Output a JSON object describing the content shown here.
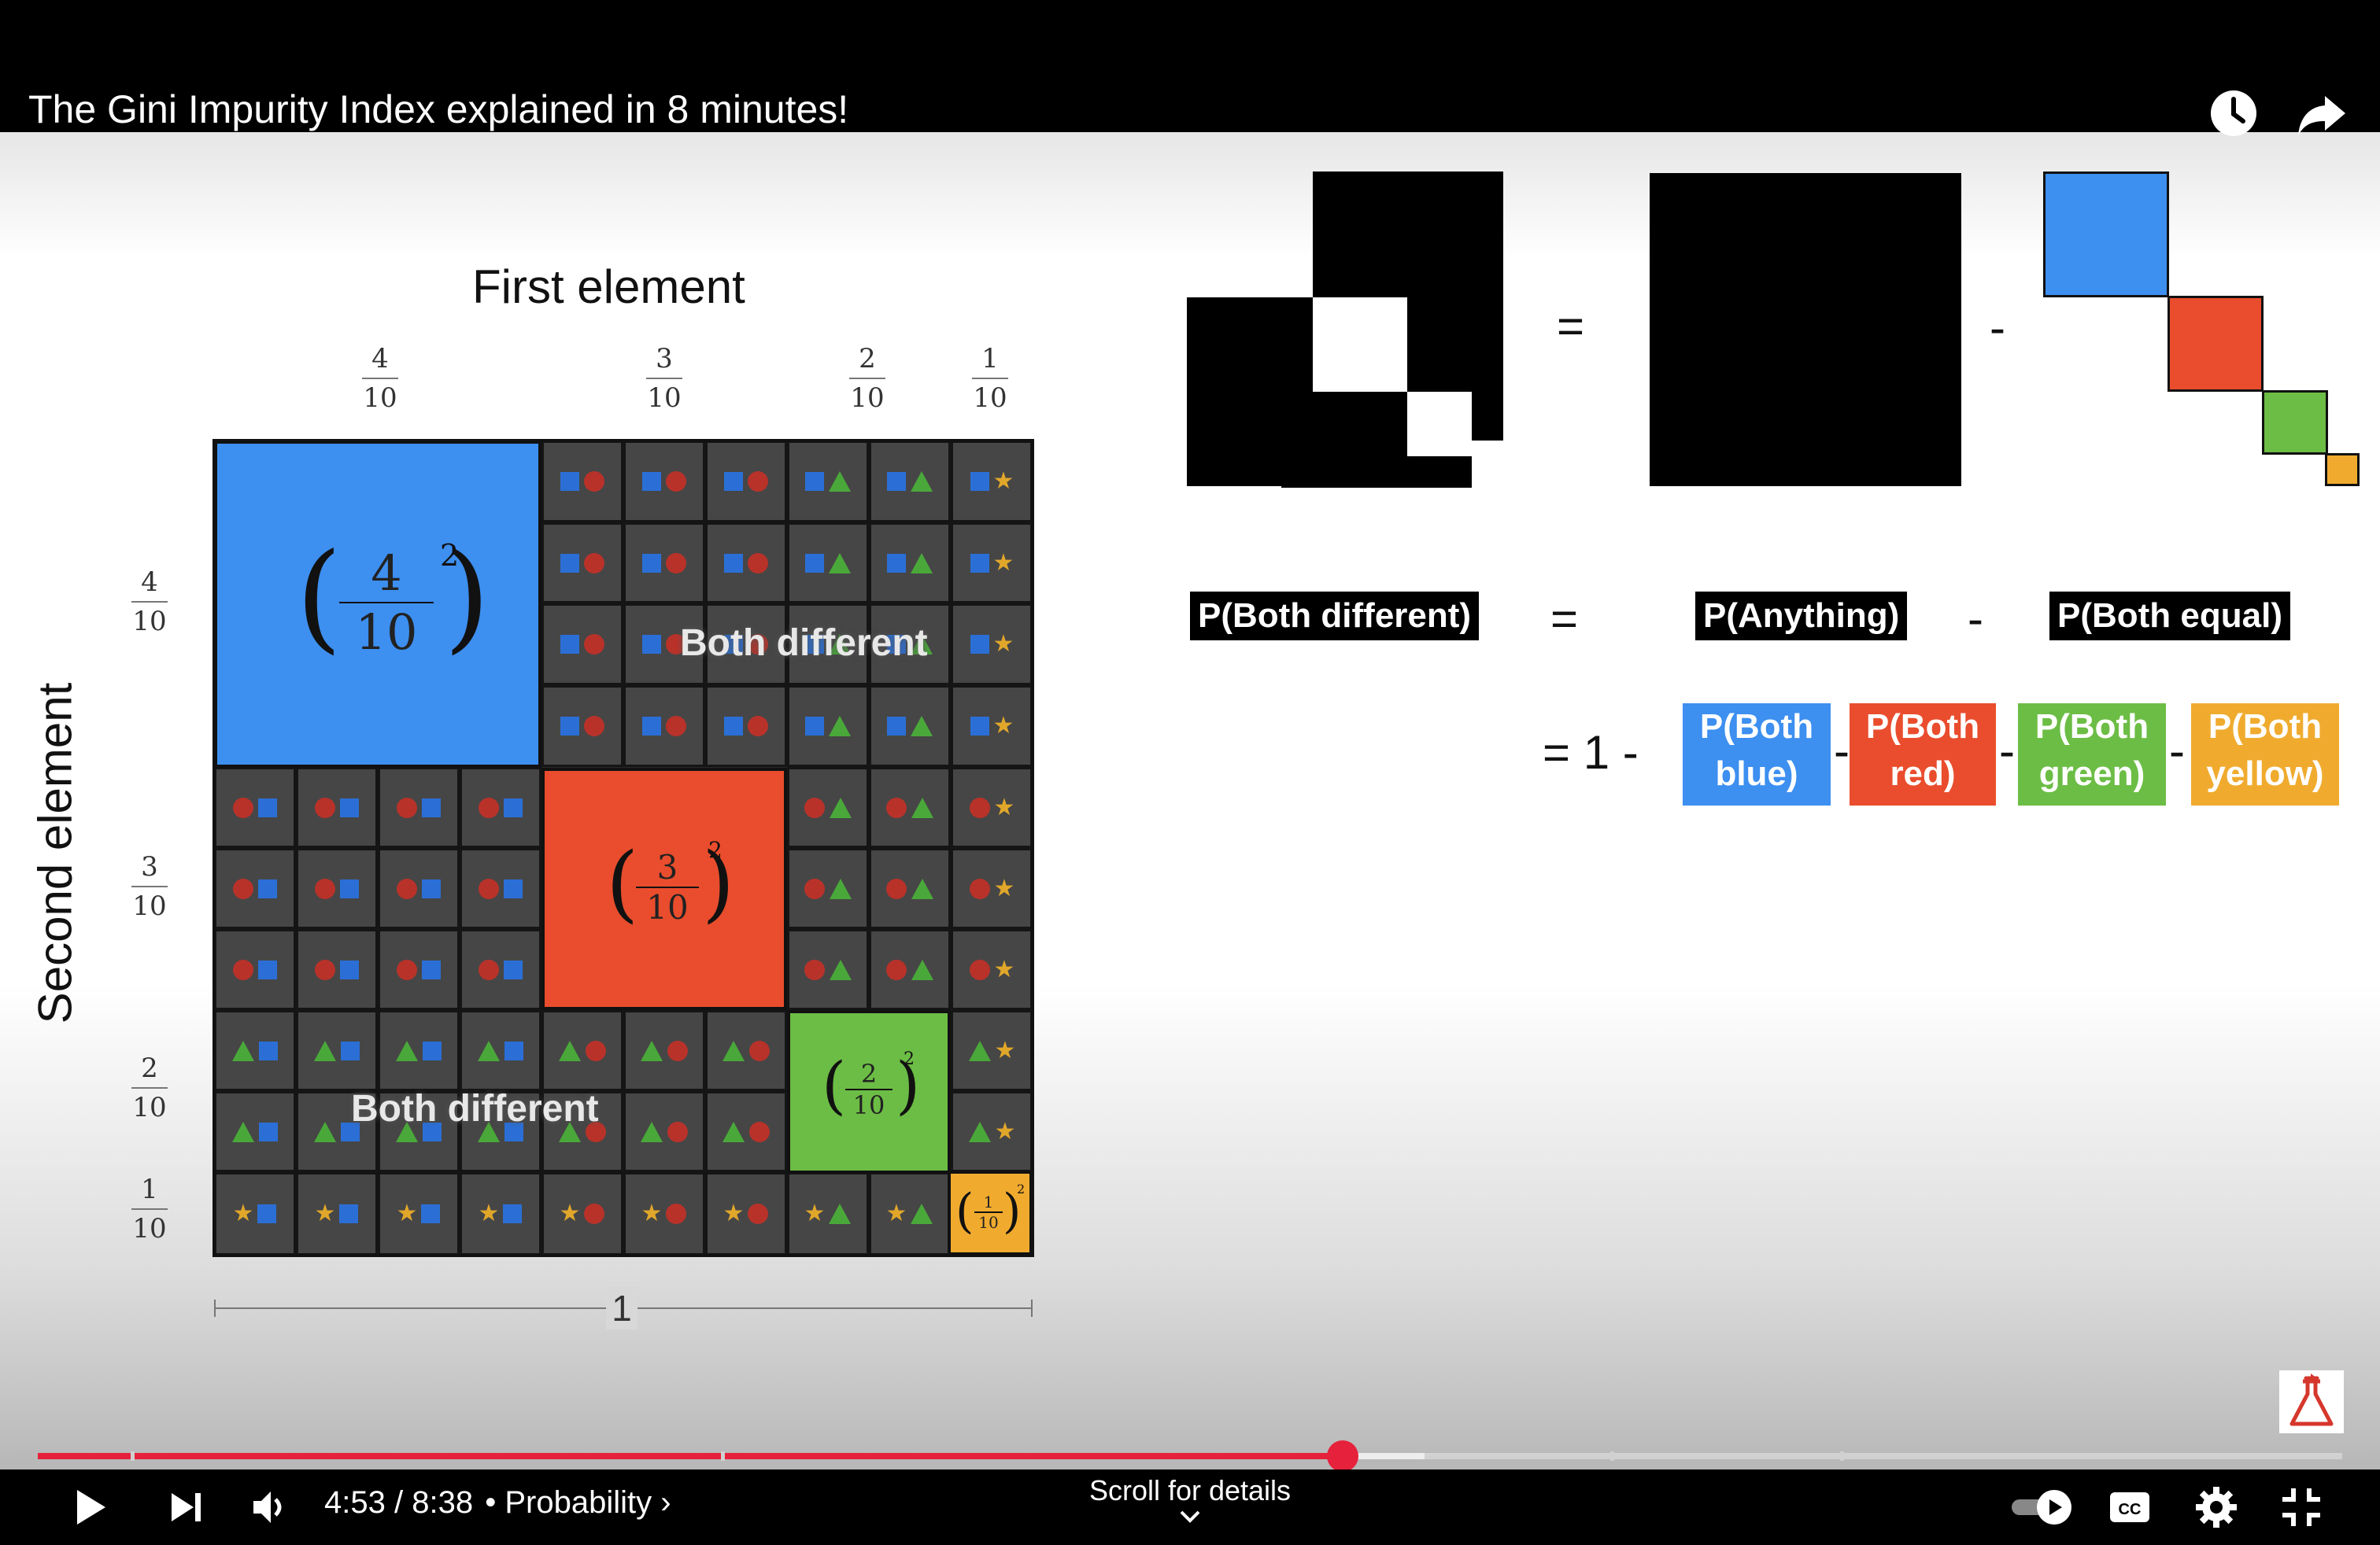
{
  "video": {
    "title": "The Gini Impurity Index explained in 8 minutes!",
    "slide": {
      "diagram": {
        "x_title": "First element",
        "y_title": "Second element",
        "column_labels": [
          {
            "num": "4",
            "den": "10"
          },
          {
            "num": "3",
            "den": "10"
          },
          {
            "num": "2",
            "den": "10"
          },
          {
            "num": "1",
            "den": "10"
          }
        ],
        "row_labels": [
          {
            "num": "4",
            "den": "10"
          },
          {
            "num": "3",
            "den": "10"
          },
          {
            "num": "2",
            "den": "10"
          },
          {
            "num": "1",
            "den": "10"
          }
        ],
        "diagonal": [
          {
            "num": "4",
            "den": "10",
            "exp": "2",
            "color": "#3d8ff0"
          },
          {
            "num": "3",
            "den": "10",
            "exp": "2",
            "color": "#e94d2d"
          },
          {
            "num": "2",
            "den": "10",
            "exp": "2",
            "color": "#6cbd45"
          },
          {
            "num": "1",
            "den": "10",
            "exp": "2",
            "color": "#f0ab2f"
          }
        ],
        "both_different_top": "Both different",
        "both_different_bottom": "Both different",
        "scale_label": "1"
      },
      "equation": {
        "equals": "=",
        "minus": "-",
        "p_both_different": "P(Both different)",
        "p_anything": "P(Anything)",
        "p_both_equal": "P(Both equal)",
        "one_minus": "= 1 -",
        "terms": [
          {
            "line1": "P(Both",
            "line2": "blue)",
            "color": "#3d8ff0"
          },
          {
            "line1": "P(Both",
            "line2": "red)",
            "color": "#e94d2d"
          },
          {
            "line1": "P(Both",
            "line2": "green)",
            "color": "#6cbd45"
          },
          {
            "line1": "P(Both",
            "line2": "yellow)",
            "color": "#f0ab2f"
          }
        ]
      }
    }
  },
  "player": {
    "current_time": "4:53",
    "separator": "/",
    "duration": "8:38",
    "dot": "•",
    "chapter": "Probability",
    "chapter_chevron": "›",
    "scroll_hint": "Scroll for details",
    "progress_fraction": 0.5663,
    "buffered_fraction": 0.6017,
    "icons": {
      "watch_later": "clock-icon",
      "share": "share-arrow-icon",
      "play": "play-icon",
      "next": "skip-next-icon",
      "volume": "volume-icon",
      "autoplay": "autoplay-toggle-icon",
      "captions": "cc-icon",
      "settings": "gear-icon",
      "exit_fullscreen": "exit-fullscreen-icon",
      "channel_watermark": "flask-logo-icon"
    }
  }
}
